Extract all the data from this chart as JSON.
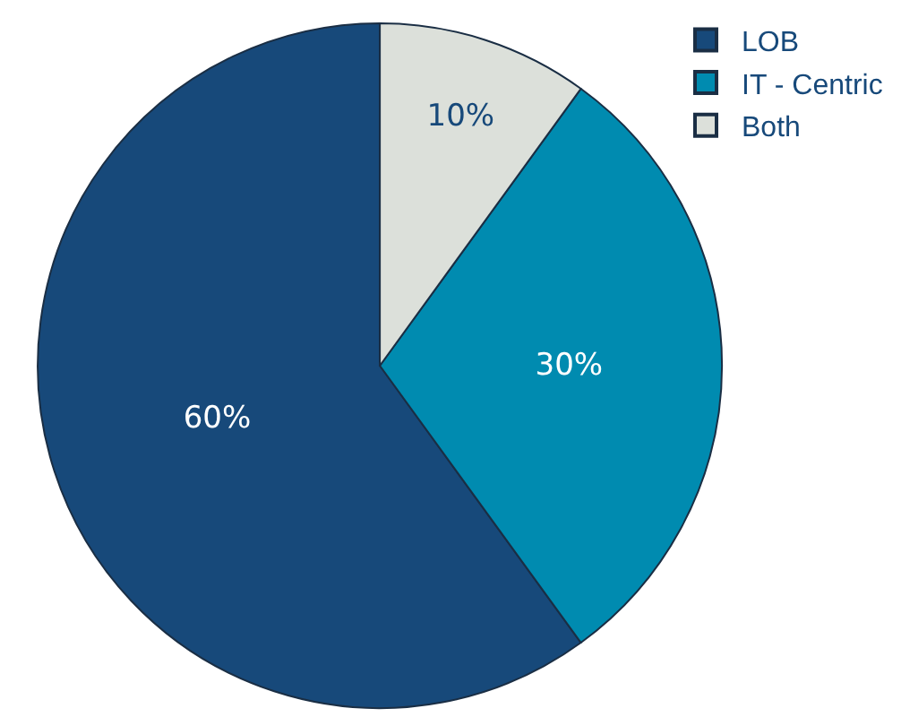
{
  "chart_data": {
    "type": "pie",
    "categories": [
      "LOB",
      "IT - Centric",
      "Both"
    ],
    "values": [
      60,
      30,
      10
    ],
    "colors": [
      "#17497a",
      "#008bb0",
      "#dce0da"
    ],
    "value_labels": [
      "60%",
      "30%",
      "10%"
    ],
    "legend": "top right"
  }
}
